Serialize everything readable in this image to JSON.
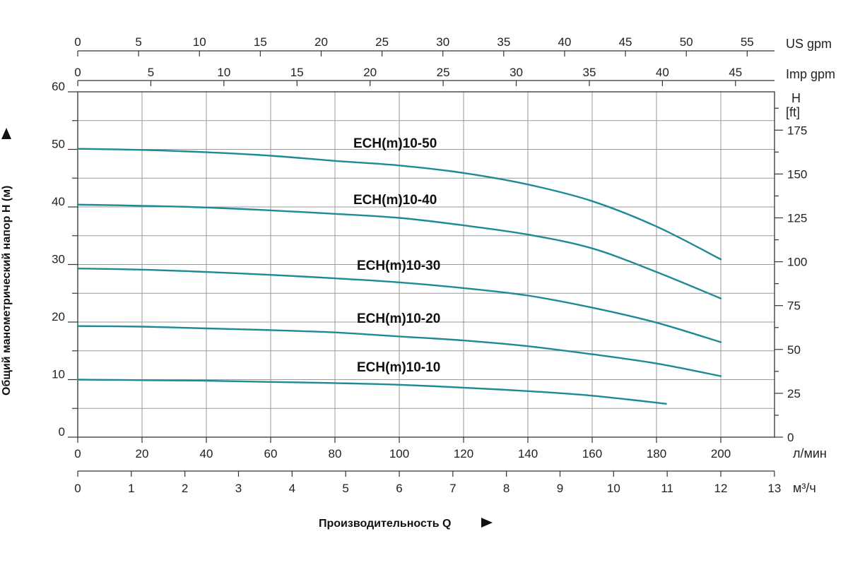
{
  "chart_data": {
    "type": "line",
    "title": "",
    "xlabel": "Производительность Q",
    "ylabel": "Общий манометрический напор H (м)",
    "y_right_label_1": "H",
    "y_right_label_2": "[ft]",
    "grid": true,
    "x_primary": {
      "unit": "л/мин",
      "range": [
        0,
        215
      ],
      "ticks": [
        0,
        20,
        40,
        60,
        80,
        100,
        120,
        140,
        160,
        180,
        200
      ]
    },
    "x_m3h": {
      "unit": "м³/ч",
      "range": [
        0,
        13
      ],
      "ticks": [
        0,
        1,
        2,
        3,
        4,
        5,
        6,
        7,
        8,
        9,
        10,
        11,
        12,
        13
      ]
    },
    "x_us_gpm": {
      "unit": "US gpm",
      "ticks": [
        0,
        5,
        10,
        15,
        20,
        25,
        30,
        35,
        40,
        45,
        50,
        55
      ]
    },
    "x_imp_gpm": {
      "unit": "Imp gpm",
      "ticks": [
        0,
        5,
        10,
        15,
        20,
        25,
        30,
        35,
        40,
        45
      ]
    },
    "y_primary": {
      "unit": "м",
      "range": [
        0,
        60
      ],
      "ticks": [
        0,
        10,
        20,
        30,
        40,
        50,
        60
      ]
    },
    "y_ft": {
      "unit": "ft",
      "ticks": [
        0,
        25,
        50,
        75,
        100,
        125,
        150,
        175
      ]
    },
    "series": [
      {
        "name": "ECH(m)10-50",
        "x": [
          0,
          20,
          40,
          60,
          80,
          100,
          120,
          140,
          160,
          180,
          200
        ],
        "y": [
          50.1,
          49.9,
          49.5,
          48.9,
          48.0,
          47.2,
          45.9,
          43.9,
          41.0,
          36.6,
          30.9
        ]
      },
      {
        "name": "ECH(m)10-40",
        "x": [
          0,
          20,
          40,
          60,
          80,
          100,
          120,
          140,
          160,
          180,
          200
        ],
        "y": [
          40.4,
          40.2,
          39.9,
          39.4,
          38.8,
          38.1,
          36.8,
          35.2,
          32.8,
          28.7,
          24.1
        ]
      },
      {
        "name": "ECH(m)10-30",
        "x": [
          0,
          20,
          40,
          60,
          80,
          100,
          120,
          140,
          160,
          180,
          200
        ],
        "y": [
          29.3,
          29.1,
          28.7,
          28.2,
          27.6,
          26.9,
          25.9,
          24.6,
          22.5,
          19.9,
          16.5
        ]
      },
      {
        "name": "ECH(m)10-20",
        "x": [
          0,
          20,
          40,
          60,
          80,
          100,
          120,
          140,
          160,
          180,
          200
        ],
        "y": [
          19.3,
          19.2,
          18.9,
          18.6,
          18.2,
          17.5,
          16.8,
          15.8,
          14.4,
          12.8,
          10.6
        ]
      },
      {
        "name": "ECH(m)10-10",
        "x": [
          0,
          20,
          40,
          60,
          80,
          100,
          120,
          140,
          160,
          183
        ],
        "y": [
          10.0,
          9.9,
          9.8,
          9.6,
          9.4,
          9.1,
          8.6,
          8.0,
          7.2,
          5.8
        ]
      }
    ]
  }
}
